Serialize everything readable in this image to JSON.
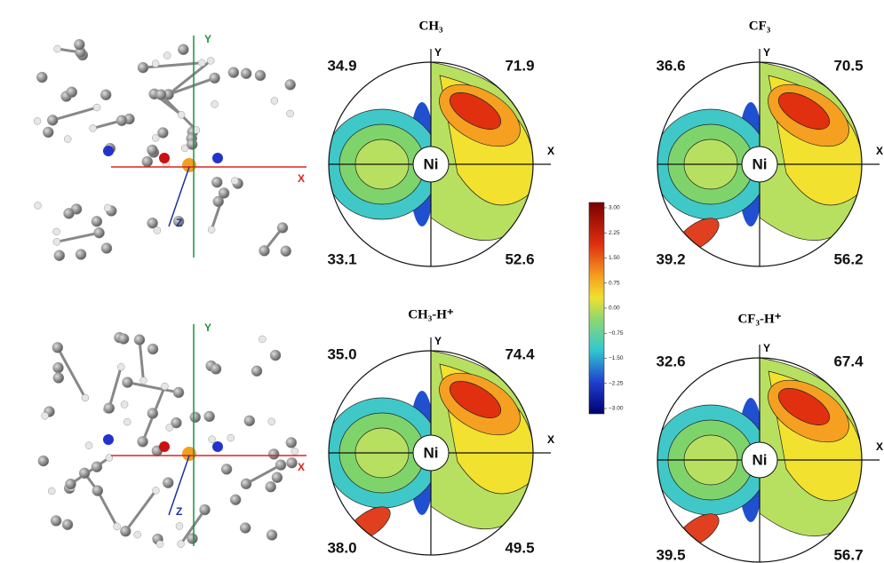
{
  "molecules": [
    {
      "axes": {
        "x": "X",
        "y": "Y",
        "z": "Z"
      }
    },
    {
      "axes": {
        "x": "X",
        "y": "Y",
        "z": "Z"
      }
    }
  ],
  "maps": [
    {
      "title": "CH₃",
      "center": "Ni",
      "x_axis": "X",
      "y_axis": "Y",
      "quadrants": {
        "top_left": "34.9",
        "top_right": "71.9",
        "bottom_left": "33.1",
        "bottom_right": "52.6"
      }
    },
    {
      "title": "CF₃",
      "center": "Ni",
      "x_axis": "X",
      "y_axis": "Y",
      "quadrants": {
        "top_left": "36.6",
        "top_right": "70.5",
        "bottom_left": "39.2",
        "bottom_right": "56.2"
      }
    },
    {
      "title": "CH₃-H⁺",
      "center": "Ni",
      "x_axis": "X",
      "y_axis": "Y",
      "quadrants": {
        "top_left": "35.0",
        "top_right": "74.4",
        "bottom_left": "38.0",
        "bottom_right": "49.5"
      }
    },
    {
      "title": "CF₃-H⁺",
      "center": "Ni",
      "x_axis": "X",
      "y_axis": "Y",
      "quadrants": {
        "top_left": "32.6",
        "top_right": "67.4",
        "bottom_left": "39.5",
        "bottom_right": "56.7"
      }
    }
  ],
  "colorbar": {
    "ticks": [
      "3.00",
      "2.25",
      "1.50",
      "0.75",
      "0.00",
      "−0.75",
      "−1.50",
      "−2.25",
      "−3.00"
    ]
  }
}
